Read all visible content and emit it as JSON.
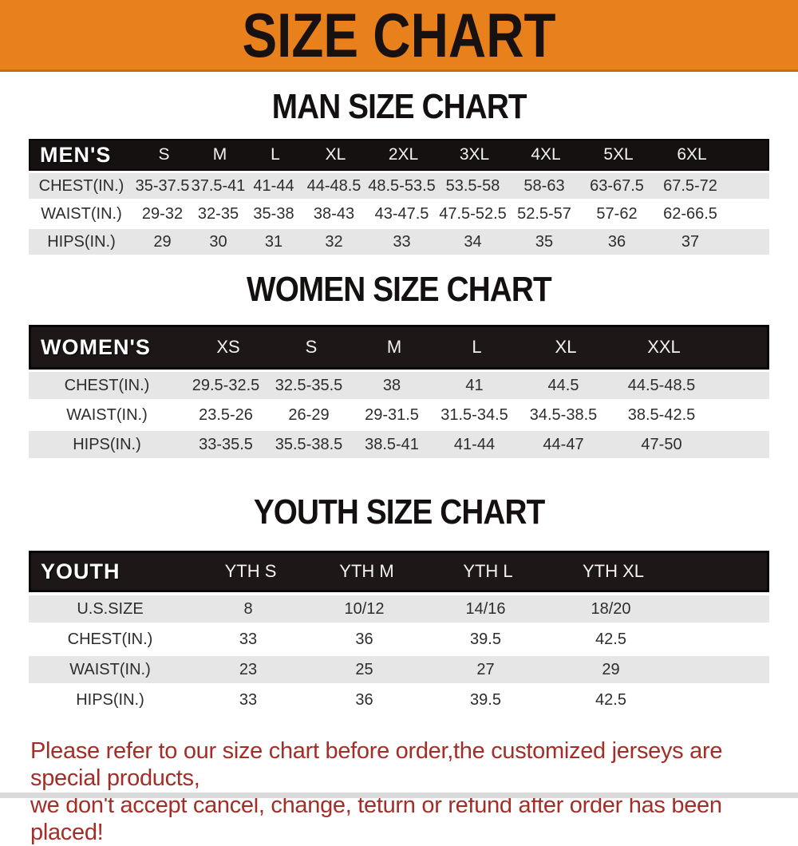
{
  "banner": {
    "title": "SIZE CHART"
  },
  "colors": {
    "banner_bg": "#e8811c",
    "banner_edge": "#c86e12",
    "header_bar": "#1d1717",
    "row_gray": "#e7e6e6",
    "row_text": "#2d2d2d",
    "disclaimer_red": "#a32e28"
  },
  "sections": [
    {
      "title": "MAN SIZE CHART",
      "header_label": "MEN'S",
      "columns": [
        "S",
        "M",
        "L",
        "XL",
        "2XL",
        "3XL",
        "4XL",
        "5XL",
        "6XL"
      ],
      "rows": [
        {
          "label": "CHEST(IN.)",
          "values": [
            "35-37.5",
            "37.5-41",
            "41-44",
            "44-48.5",
            "48.5-53.5",
            "53.5-58",
            "58-63",
            "63-67.5",
            "67.5-72"
          ]
        },
        {
          "label": "WAIST(IN.)",
          "values": [
            "29-32",
            "32-35",
            "35-38",
            "38-43",
            "43-47.5",
            "47.5-52.5",
            "52.5-57",
            "57-62",
            "62-66.5"
          ]
        },
        {
          "label": "HIPS(IN.)",
          "values": [
            "29",
            "30",
            "31",
            "32",
            "33",
            "34",
            "35",
            "36",
            "37"
          ]
        }
      ]
    },
    {
      "title": "WOMEN SIZE CHART",
      "header_label": "WOMEN'S",
      "columns": [
        "XS",
        "S",
        "M",
        "L",
        "XL",
        "XXL"
      ],
      "rows": [
        {
          "label": "CHEST(IN.)",
          "values": [
            "29.5-32.5",
            "32.5-35.5",
            "38",
            "41",
            "44.5",
            "44.5-48.5"
          ]
        },
        {
          "label": "WAIST(IN.)",
          "values": [
            "23.5-26",
            "26-29",
            "29-31.5",
            "31.5-34.5",
            "34.5-38.5",
            "38.5-42.5"
          ]
        },
        {
          "label": "HIPS(IN.)",
          "values": [
            "33-35.5",
            "35.5-38.5",
            "38.5-41",
            "41-44",
            "44-47",
            "47-50"
          ]
        }
      ]
    },
    {
      "title": "YOUTH SIZE CHART",
      "header_label": "YOUTH",
      "columns": [
        "YTH S",
        "YTH M",
        "YTH L",
        "YTH XL"
      ],
      "rows": [
        {
          "label": "U.S.SIZE",
          "values": [
            "8",
            "10/12",
            "14/16",
            "18/20"
          ]
        },
        {
          "label": "CHEST(IN.)",
          "values": [
            "33",
            "36",
            "39.5",
            "42.5"
          ]
        },
        {
          "label": "WAIST(IN.)",
          "values": [
            "23",
            "25",
            "27",
            "29"
          ]
        },
        {
          "label": "HIPS(IN.)",
          "values": [
            "33",
            "36",
            "39.5",
            "42.5"
          ]
        }
      ]
    }
  ],
  "disclaimer": {
    "line1": "Please refer to our size chart before order,the customized jerseys are special products,",
    "line2": "we don't accept cancel, change, teturn or refund after order has been placed!"
  }
}
